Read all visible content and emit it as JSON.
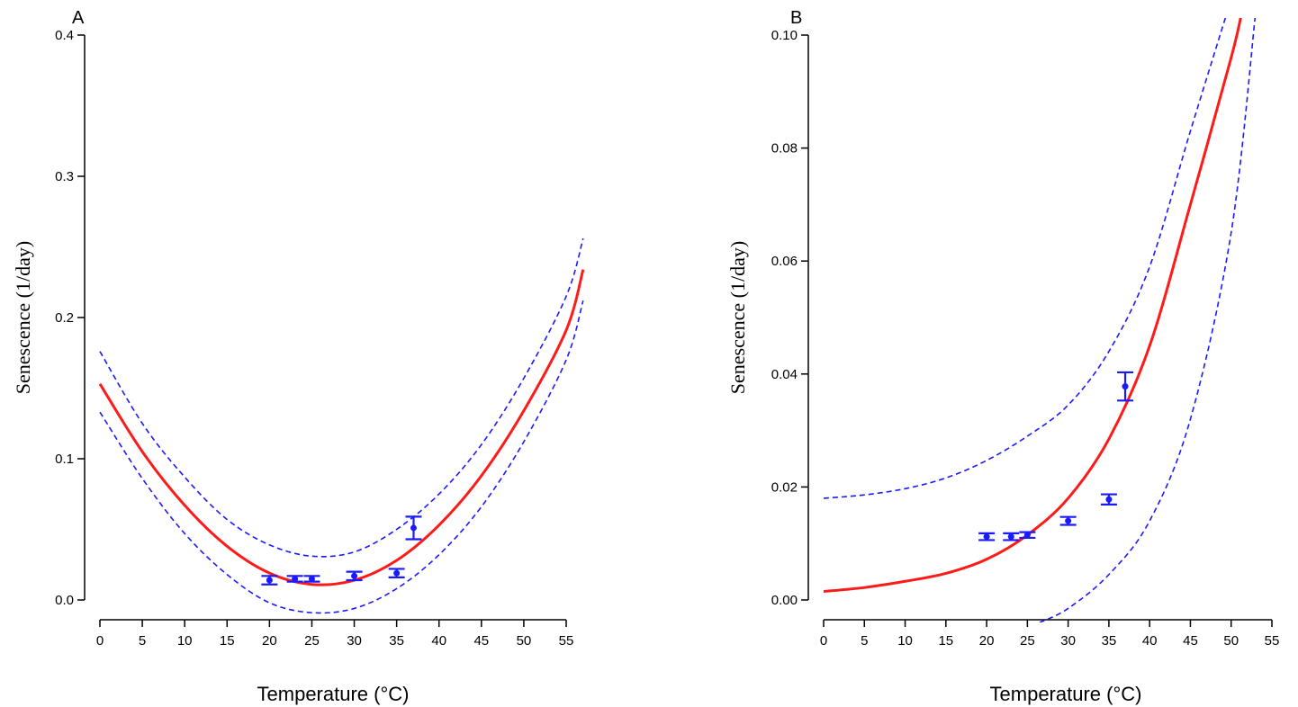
{
  "chart_data": [
    {
      "type": "line",
      "panel_label": "A",
      "xlabel": "Temperature (°C)",
      "ylabel": "Senescence (1/day)",
      "xlim": [
        0,
        57
      ],
      "ylim": [
        0,
        0.4
      ],
      "xticks": [
        "0",
        "5",
        "10",
        "15",
        "20",
        "25",
        "30",
        "35",
        "40",
        "45",
        "50",
        "55"
      ],
      "yticks": [
        "0.0",
        "0.1",
        "0.2",
        "0.3",
        "0.4"
      ],
      "xtick_values": [
        0,
        5,
        10,
        15,
        20,
        25,
        30,
        35,
        40,
        45,
        50,
        55
      ],
      "ytick_values": [
        0,
        0.1,
        0.2,
        0.3,
        0.4
      ],
      "series": [
        {
          "role": "fit",
          "color": "#ff1a1a",
          "x": [
            0,
            5,
            10,
            15,
            20,
            25,
            30,
            35,
            40,
            45,
            50,
            55,
            57
          ],
          "y": [
            0.153,
            0.105,
            0.067,
            0.038,
            0.019,
            0.011,
            0.014,
            0.028,
            0.053,
            0.088,
            0.134,
            0.191,
            0.234
          ]
        },
        {
          "role": "ci-upper",
          "color": "#1a1aff",
          "x": [
            0,
            5,
            10,
            15,
            20,
            25,
            30,
            35,
            40,
            45,
            50,
            55,
            57
          ],
          "y": [
            0.176,
            0.125,
            0.087,
            0.057,
            0.039,
            0.031,
            0.034,
            0.05,
            0.075,
            0.11,
            0.157,
            0.215,
            0.256
          ]
        },
        {
          "role": "ci-lower",
          "color": "#1a1aff",
          "x": [
            0,
            5,
            10,
            15,
            20,
            25,
            30,
            35,
            40,
            45,
            50,
            55,
            57
          ],
          "y": [
            0.133,
            0.086,
            0.047,
            0.018,
            -0.002,
            -0.009,
            -0.006,
            0.008,
            0.032,
            0.066,
            0.112,
            0.17,
            0.212
          ]
        }
      ],
      "points": [
        {
          "x": 20,
          "y": 0.014,
          "err": 0.003
        },
        {
          "x": 23,
          "y": 0.015,
          "err": 0.002
        },
        {
          "x": 25,
          "y": 0.015,
          "err": 0.002
        },
        {
          "x": 30,
          "y": 0.017,
          "err": 0.003
        },
        {
          "x": 35,
          "y": 0.019,
          "err": 0.003
        },
        {
          "x": 37,
          "y": 0.051,
          "err": 0.008
        }
      ]
    },
    {
      "type": "line",
      "panel_label": "B",
      "xlabel": "Temperature (°C)",
      "ylabel": "Senescence (1/day)",
      "xlim": [
        0,
        55
      ],
      "ylim": [
        0,
        0.1
      ],
      "xticks": [
        "0",
        "5",
        "10",
        "15",
        "20",
        "25",
        "30",
        "35",
        "40",
        "45",
        "50",
        "55"
      ],
      "yticks": [
        "0.00",
        "0.02",
        "0.04",
        "0.06",
        "0.08",
        "0.10"
      ],
      "xtick_values": [
        0,
        5,
        10,
        15,
        20,
        25,
        30,
        35,
        40,
        45,
        50,
        55
      ],
      "ytick_values": [
        0,
        0.02,
        0.04,
        0.06,
        0.08,
        0.1
      ],
      "series": [
        {
          "role": "fit",
          "color": "#ff1a1a",
          "x": [
            0,
            5,
            10,
            15,
            20,
            25,
            30,
            35,
            40,
            45,
            50,
            51.3
          ],
          "y": [
            0.0015,
            0.0022,
            0.0033,
            0.0047,
            0.0072,
            0.0115,
            0.018,
            0.0285,
            0.045,
            0.07,
            0.096,
            0.104
          ]
        },
        {
          "role": "ci-upper",
          "color": "#1a1aff",
          "x": [
            0,
            5,
            10,
            15,
            20,
            25,
            30,
            35,
            40,
            45,
            49.5
          ],
          "y": [
            0.018,
            0.0186,
            0.0197,
            0.0216,
            0.0247,
            0.029,
            0.0345,
            0.044,
            0.059,
            0.083,
            0.104
          ]
        },
        {
          "role": "ci-lower",
          "color": "#1a1aff",
          "x": [
            26.5,
            30,
            35,
            40,
            45,
            50,
            53
          ],
          "y": [
            -0.004,
            -0.0015,
            0.0045,
            0.014,
            0.032,
            0.065,
            0.104
          ]
        }
      ],
      "points": [
        {
          "x": 20,
          "y": 0.0112,
          "err": 0.0006
        },
        {
          "x": 23,
          "y": 0.0112,
          "err": 0.0006
        },
        {
          "x": 25,
          "y": 0.0115,
          "err": 0.0005
        },
        {
          "x": 30,
          "y": 0.014,
          "err": 0.0007
        },
        {
          "x": 35,
          "y": 0.0178,
          "err": 0.0009
        },
        {
          "x": 37,
          "y": 0.0378,
          "err": 0.0025
        }
      ]
    }
  ]
}
